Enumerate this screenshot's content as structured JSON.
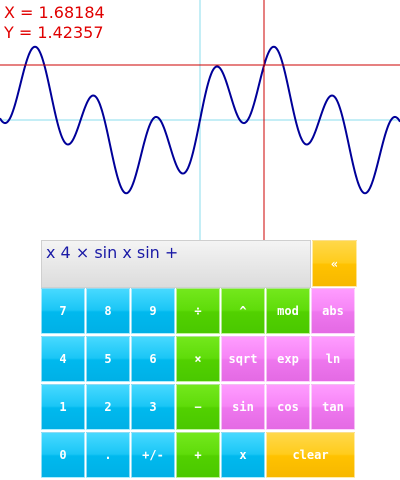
{
  "graph": {
    "readout_x": "X = 1.68184",
    "readout_y": "Y = 1.42357",
    "curve_color": "#000099",
    "cursor_color": "#cc0000",
    "axis_color": "#88ddee"
  },
  "calculator": {
    "expression": "x 4 × sin x sin +",
    "backspace_label": "«",
    "keys": {
      "k7": "7",
      "k8": "8",
      "k9": "9",
      "divide": "÷",
      "power": "^",
      "mod": "mod",
      "abs": "abs",
      "k4": "4",
      "k5": "5",
      "k6": "6",
      "multiply": "×",
      "sqrt": "sqrt",
      "exp": "exp",
      "ln": "ln",
      "k1": "1",
      "k2": "2",
      "k3": "3",
      "minus": "−",
      "sin": "sin",
      "cos": "cos",
      "tan": "tan",
      "k0": "0",
      "dot": ".",
      "negate": "+/-",
      "plus": "+",
      "x": "x",
      "clear": "clear"
    },
    "colors": {
      "digit": "#00b9ee",
      "operator": "#52d100",
      "function": "#ee77ee",
      "control": "#ffc200"
    }
  }
}
